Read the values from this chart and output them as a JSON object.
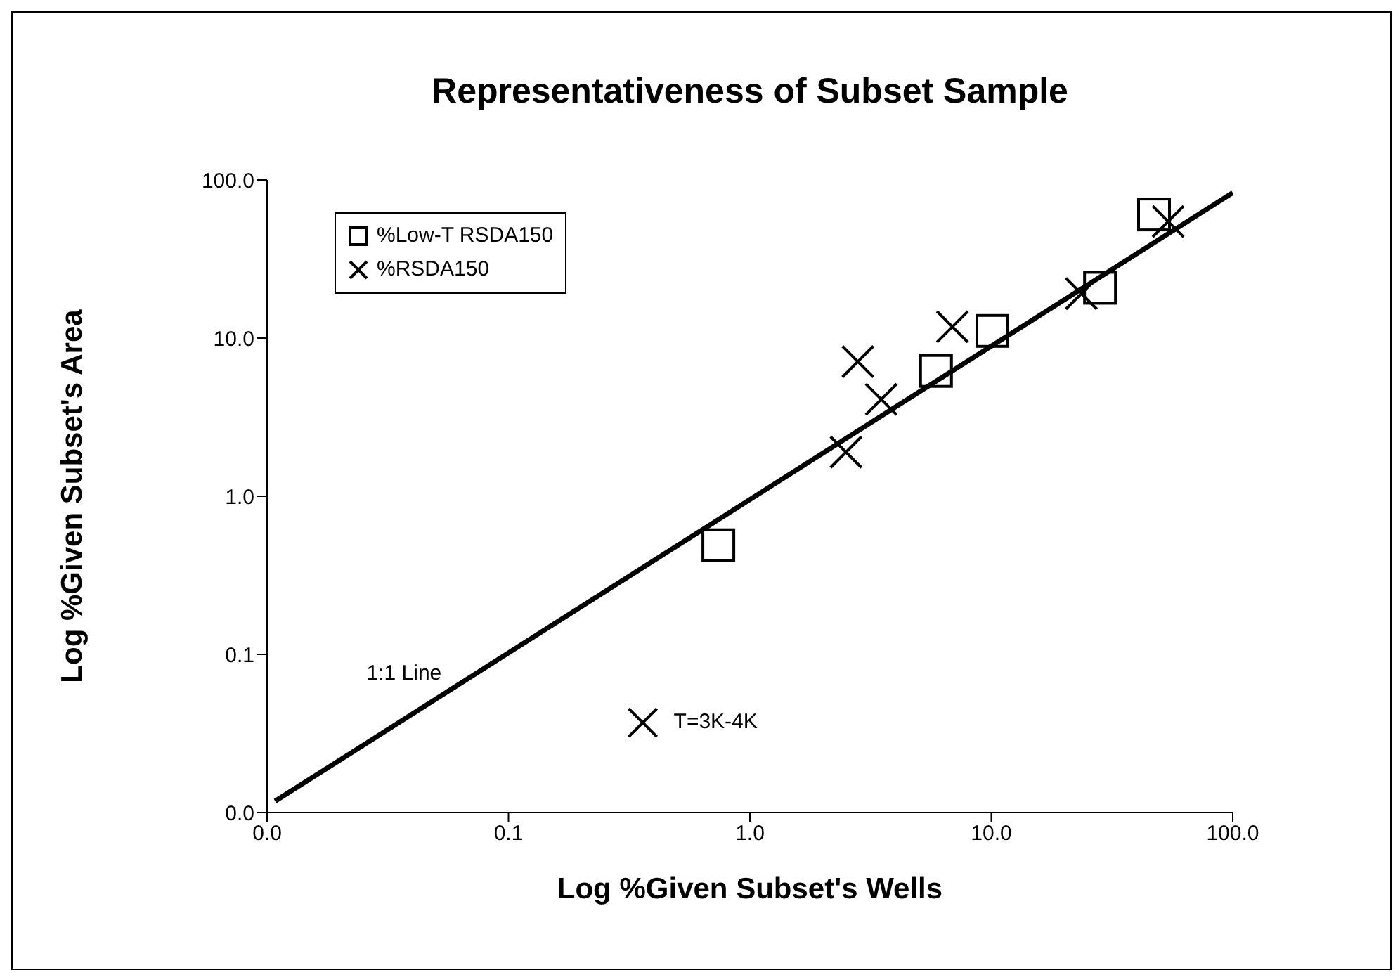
{
  "chart_data": {
    "type": "scatter",
    "title": "Representativeness of Subset Sample",
    "xlabel": "Log %Given Subset's Wells",
    "ylabel": "Log %Given Subset's Area",
    "log": "xy",
    "xlim": [
      0.01,
      100
    ],
    "ylim": [
      0.01,
      100
    ],
    "xticks": [
      {
        "value": 0.01,
        "label": "0.0"
      },
      {
        "value": 0.1,
        "label": "0.1"
      },
      {
        "value": 1,
        "label": "1.0"
      },
      {
        "value": 10,
        "label": "10.0"
      },
      {
        "value": 100,
        "label": "100.0"
      }
    ],
    "yticks": [
      {
        "value": 0.01,
        "label": "0.0"
      },
      {
        "value": 0.1,
        "label": "0.1"
      },
      {
        "value": 1,
        "label": "1.0"
      },
      {
        "value": 10,
        "label": "10.0"
      },
      {
        "value": 100,
        "label": "100.0"
      }
    ],
    "grid": false,
    "legend": "top left",
    "series": [
      {
        "name": "%Low-T RSDA150",
        "color": "#000000",
        "marker": "square",
        "x": [
          0.74,
          5.9,
          10.1,
          28.2,
          47.2
        ],
        "values": [
          0.49,
          6.2,
          11.1,
          20.8,
          60.5
        ]
      },
      {
        "name": "%RSDA150",
        "color": "#000000",
        "marker": "cross",
        "x": [
          2.5,
          2.8,
          3.5,
          6.9,
          23.6,
          54
        ],
        "values": [
          1.9,
          7.1,
          4.1,
          11.8,
          19.1,
          54.6
        ]
      },
      {
        "type": "line",
        "color": "#000000",
        "marker": "none",
        "line_style": "solid",
        "x": [
          0.0108,
          100
        ],
        "values": [
          0.0118,
          83
        ]
      }
    ],
    "annotations": [
      "1:1 Line",
      {
        "text": "T=3K-4K",
        "x": 0.36,
        "y": 0.037
      }
    ]
  }
}
